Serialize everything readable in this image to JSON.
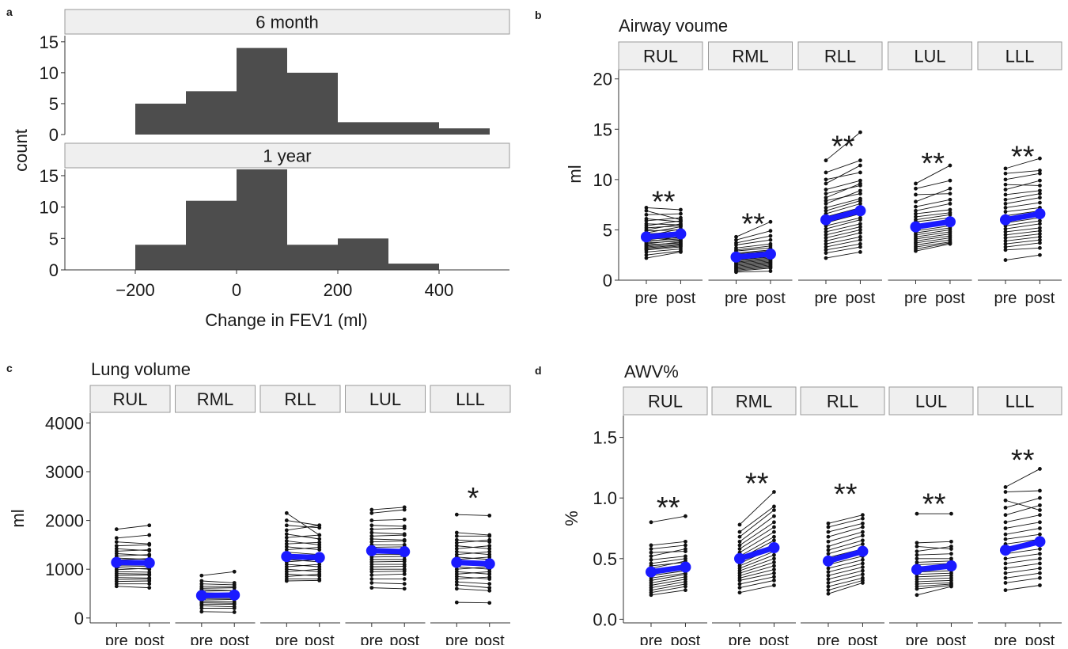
{
  "chart_data": [
    {
      "panel": "a",
      "type": "bar",
      "subtype": "faceted histogram",
      "xlabel": "Change in FEV1 (ml)",
      "ylabel": "count",
      "xticks": [
        -200,
        0,
        200,
        400
      ],
      "yticks": [
        0,
        5,
        10,
        15
      ],
      "ylim": [
        0,
        16
      ],
      "bin_width": 100,
      "facets": [
        {
          "name": "6 month",
          "bins": [
            {
              "start": -200,
              "end": -100,
              "count": 5
            },
            {
              "start": -100,
              "end": 0,
              "count": 7
            },
            {
              "start": 0,
              "end": 100,
              "count": 14
            },
            {
              "start": 100,
              "end": 200,
              "count": 10
            },
            {
              "start": 200,
              "end": 300,
              "count": 2
            },
            {
              "start": 300,
              "end": 400,
              "count": 2
            },
            {
              "start": 400,
              "end": 500,
              "count": 1
            }
          ]
        },
        {
          "name": "1 year",
          "bins": [
            {
              "start": -200,
              "end": -100,
              "count": 4
            },
            {
              "start": -100,
              "end": 0,
              "count": 11
            },
            {
              "start": 0,
              "end": 100,
              "count": 16
            },
            {
              "start": 100,
              "end": 200,
              "count": 4
            },
            {
              "start": 200,
              "end": 300,
              "count": 5
            },
            {
              "start": 300,
              "end": 400,
              "count": 1
            }
          ]
        }
      ],
      "bar_color": "#4d4d4d"
    },
    {
      "panel": "b",
      "type": "line",
      "subtype": "paired pre/post",
      "title": "Airway voume",
      "ylabel": "ml",
      "yticks": [
        "0",
        "5",
        "10",
        "15",
        "20"
      ],
      "ylim": [
        0,
        21
      ],
      "xcategories": [
        "pre",
        "post"
      ],
      "mean_color": "#1a1aff",
      "facets": [
        {
          "name": "RUL",
          "sig": "**",
          "mean": [
            4.3,
            4.6
          ],
          "sig_y": 7.9,
          "pre": [
            7.2,
            6.9,
            6.5,
            6.1,
            5.9,
            5.6,
            5.4,
            5.2,
            5.0,
            4.9,
            4.7,
            4.6,
            4.5,
            4.4,
            4.3,
            4.2,
            4.1,
            4.0,
            3.9,
            3.8,
            3.7,
            3.6,
            3.5,
            3.4,
            3.3,
            3.2,
            3.1,
            3.0,
            2.8,
            2.5,
            2.2
          ],
          "post": [
            7.0,
            6.0,
            6.6,
            5.8,
            6.2,
            5.5,
            5.9,
            5.4,
            5.6,
            5.0,
            5.3,
            4.8,
            4.7,
            5.1,
            4.5,
            4.6,
            4.2,
            4.4,
            4.1,
            4.3,
            3.9,
            4.0,
            3.7,
            3.8,
            3.6,
            3.5,
            3.4,
            3.3,
            3.1,
            2.9,
            2.8
          ]
        },
        {
          "name": "RML",
          "sig": "**",
          "mean": [
            2.3,
            2.6
          ],
          "sig_y": 5.7,
          "pre": [
            4.3,
            4.0,
            3.7,
            3.5,
            3.2,
            3.0,
            2.9,
            2.7,
            2.6,
            2.5,
            2.4,
            2.3,
            2.2,
            2.1,
            2.0,
            1.9,
            1.8,
            1.7,
            1.6,
            1.5,
            1.4,
            1.3,
            1.2,
            1.1,
            1.0,
            0.9,
            0.8
          ],
          "post": [
            5.8,
            4.9,
            4.4,
            4.0,
            3.6,
            3.4,
            3.2,
            3.0,
            2.9,
            2.8,
            2.7,
            2.6,
            2.5,
            2.4,
            2.3,
            2.2,
            2.1,
            2.0,
            1.9,
            1.8,
            1.7,
            1.6,
            1.5,
            1.4,
            1.3,
            1.2,
            0.9
          ]
        },
        {
          "name": "RLL",
          "sig": "**",
          "mean": [
            6.0,
            6.9
          ],
          "sig_y": 13.4,
          "pre": [
            11.9,
            10.7,
            10.0,
            9.6,
            9.0,
            8.6,
            8.2,
            7.9,
            7.6,
            7.2,
            6.9,
            6.6,
            6.3,
            6.0,
            5.7,
            5.4,
            5.1,
            4.8,
            4.5,
            4.2,
            3.9,
            3.6,
            3.3,
            3.0,
            2.7,
            2.2
          ],
          "post": [
            14.7,
            11.9,
            10.7,
            11.4,
            9.9,
            9.4,
            9.6,
            8.6,
            8.9,
            8.1,
            7.9,
            7.6,
            7.2,
            6.9,
            6.6,
            6.2,
            6.0,
            5.6,
            5.3,
            5.0,
            4.7,
            4.3,
            4.0,
            3.6,
            3.3,
            2.8
          ]
        },
        {
          "name": "LUL",
          "sig": "**",
          "mean": [
            5.3,
            5.8
          ],
          "sig_y": 11.7,
          "pre": [
            9.6,
            9.1,
            8.5,
            7.8,
            7.3,
            6.9,
            6.6,
            6.3,
            6.0,
            5.8,
            5.5,
            5.3,
            5.1,
            4.9,
            4.7,
            4.5,
            4.3,
            4.1,
            3.9,
            3.7,
            3.5,
            3.3,
            3.1,
            2.9
          ],
          "post": [
            11.4,
            9.9,
            8.6,
            9.1,
            8.0,
            7.6,
            7.0,
            6.7,
            6.5,
            6.2,
            6.0,
            5.8,
            5.6,
            5.4,
            5.2,
            5.0,
            4.8,
            4.6,
            4.4,
            4.2,
            4.0,
            3.8,
            3.7,
            3.6
          ]
        },
        {
          "name": "LLL",
          "sig": "**",
          "mean": [
            6.0,
            6.6
          ],
          "sig_y": 12.4,
          "pre": [
            11.1,
            10.6,
            10.0,
            9.5,
            9.0,
            8.5,
            8.0,
            7.6,
            7.2,
            6.8,
            6.4,
            6.0,
            5.7,
            5.4,
            5.1,
            4.8,
            4.5,
            4.2,
            3.9,
            3.6,
            3.3,
            3.0,
            2.0
          ],
          "post": [
            12.1,
            10.9,
            10.6,
            9.4,
            9.9,
            8.9,
            8.6,
            8.2,
            7.7,
            7.2,
            6.9,
            6.5,
            6.2,
            5.9,
            5.6,
            5.2,
            4.9,
            4.6,
            4.3,
            4.0,
            3.7,
            3.2,
            2.5
          ]
        }
      ]
    },
    {
      "panel": "c",
      "type": "line",
      "subtype": "paired pre/post",
      "title": "Lung volume",
      "ylabel": "ml",
      "yticks": [
        "0",
        "1000",
        "2000",
        "3000",
        "4000"
      ],
      "ylim": [
        -100,
        4200
      ],
      "xcategories": [
        "pre",
        "post"
      ],
      "mean_color": "#1a1aff",
      "facets": [
        {
          "name": "RUL",
          "sig": "",
          "mean": [
            1140,
            1130
          ],
          "sig_y": null,
          "pre": [
            1820,
            1640,
            1560,
            1480,
            1420,
            1370,
            1320,
            1270,
            1230,
            1190,
            1150,
            1110,
            1070,
            1030,
            990,
            950,
            910,
            870,
            830,
            790,
            750,
            700,
            650
          ],
          "post": [
            1900,
            1700,
            1520,
            1500,
            1380,
            1400,
            1280,
            1300,
            1200,
            1220,
            1120,
            1140,
            1060,
            1000,
            1020,
            940,
            900,
            880,
            820,
            800,
            760,
            700,
            620
          ]
        },
        {
          "name": "RML",
          "sig": "",
          "mean": [
            460,
            470
          ],
          "sig_y": null,
          "pre": [
            870,
            760,
            700,
            650,
            610,
            580,
            550,
            520,
            490,
            460,
            430,
            400,
            370,
            340,
            310,
            280,
            250,
            200,
            130
          ],
          "post": [
            950,
            720,
            680,
            640,
            620,
            560,
            560,
            500,
            500,
            450,
            440,
            400,
            380,
            330,
            300,
            280,
            230,
            200,
            120
          ]
        },
        {
          "name": "RLL",
          "sig": "",
          "mean": [
            1260,
            1240
          ],
          "sig_y": null,
          "pre": [
            2150,
            2000,
            1900,
            1800,
            1720,
            1650,
            1580,
            1520,
            1460,
            1400,
            1350,
            1300,
            1250,
            1200,
            1150,
            1100,
            1050,
            1000,
            950,
            900,
            850,
            800,
            760
          ],
          "post": [
            1700,
            1900,
            1850,
            1900,
            1620,
            1700,
            1500,
            1550,
            1400,
            1450,
            1300,
            1250,
            1280,
            1150,
            1200,
            1050,
            1100,
            950,
            1000,
            860,
            900,
            800,
            770
          ]
        },
        {
          "name": "LUL",
          "sig": "",
          "mean": [
            1380,
            1360
          ],
          "sig_y": null,
          "pre": [
            2220,
            2150,
            2000,
            1900,
            1820,
            1750,
            1680,
            1620,
            1560,
            1500,
            1450,
            1400,
            1350,
            1300,
            1250,
            1200,
            1150,
            1100,
            1050,
            1000,
            950,
            880,
            800,
            720,
            620
          ],
          "post": [
            2270,
            2220,
            2020,
            1880,
            1840,
            1720,
            1700,
            1600,
            1580,
            1500,
            1460,
            1400,
            1360,
            1300,
            1260,
            1200,
            1160,
            1100,
            1060,
            1000,
            960,
            900,
            800,
            700,
            600
          ]
        },
        {
          "name": "LLL",
          "sig": "*",
          "mean": [
            1140,
            1110
          ],
          "sig_y": 2480,
          "pre": [
            2120,
            1750,
            1680,
            1600,
            1540,
            1480,
            1420,
            1360,
            1300,
            1250,
            1200,
            1150,
            1100,
            1050,
            1000,
            950,
            900,
            850,
            800,
            740,
            680,
            600,
            320
          ],
          "post": [
            2100,
            1700,
            1680,
            1560,
            1600,
            1420,
            1480,
            1300,
            1360,
            1200,
            1250,
            1100,
            1150,
            1000,
            1050,
            900,
            950,
            800,
            840,
            700,
            620,
            560,
            310
          ]
        }
      ]
    },
    {
      "panel": "d",
      "type": "line",
      "subtype": "paired pre/post",
      "title": "AWV%",
      "ylabel": "%",
      "yticks": [
        "0.0",
        "0.5",
        "1.0",
        "1.5"
      ],
      "ylim": [
        -0.03,
        1.68
      ],
      "xcategories": [
        "pre",
        "post"
      ],
      "mean_color": "#1a1aff",
      "facets": [
        {
          "name": "RUL",
          "sig": "**",
          "mean": [
            0.39,
            0.43
          ],
          "sig_y": 0.93,
          "pre": [
            0.8,
            0.61,
            0.58,
            0.55,
            0.52,
            0.49,
            0.46,
            0.44,
            0.42,
            0.4,
            0.38,
            0.36,
            0.34,
            0.32,
            0.3,
            0.28,
            0.26,
            0.24,
            0.22,
            0.2
          ],
          "post": [
            0.85,
            0.64,
            0.61,
            0.56,
            0.58,
            0.52,
            0.5,
            0.47,
            0.48,
            0.44,
            0.42,
            0.4,
            0.38,
            0.37,
            0.35,
            0.33,
            0.31,
            0.29,
            0.27,
            0.24
          ]
        },
        {
          "name": "RML",
          "sig": "**",
          "mean": [
            0.5,
            0.59
          ],
          "sig_y": 1.13,
          "pre": [
            0.78,
            0.72,
            0.68,
            0.64,
            0.61,
            0.58,
            0.55,
            0.52,
            0.5,
            0.48,
            0.46,
            0.44,
            0.42,
            0.4,
            0.38,
            0.36,
            0.34,
            0.32,
            0.29,
            0.26,
            0.22
          ],
          "post": [
            1.05,
            0.93,
            0.9,
            0.85,
            0.8,
            0.76,
            0.72,
            0.68,
            0.65,
            0.62,
            0.59,
            0.56,
            0.53,
            0.5,
            0.47,
            0.44,
            0.41,
            0.38,
            0.35,
            0.32,
            0.28
          ]
        },
        {
          "name": "RLL",
          "sig": "**",
          "mean": [
            0.48,
            0.56
          ],
          "sig_y": 1.04,
          "pre": [
            0.79,
            0.76,
            0.72,
            0.68,
            0.64,
            0.6,
            0.57,
            0.54,
            0.51,
            0.48,
            0.45,
            0.42,
            0.39,
            0.36,
            0.33,
            0.3,
            0.27,
            0.24,
            0.21
          ],
          "post": [
            0.86,
            0.83,
            0.79,
            0.76,
            0.72,
            0.69,
            0.65,
            0.62,
            0.58,
            0.55,
            0.52,
            0.49,
            0.46,
            0.43,
            0.4,
            0.37,
            0.34,
            0.32,
            0.3
          ]
        },
        {
          "name": "LUL",
          "sig": "**",
          "mean": [
            0.41,
            0.44
          ],
          "sig_y": 0.96,
          "pre": [
            0.87,
            0.63,
            0.6,
            0.56,
            0.53,
            0.5,
            0.47,
            0.45,
            0.43,
            0.41,
            0.39,
            0.37,
            0.35,
            0.33,
            0.31,
            0.29,
            0.27,
            0.25,
            0.2
          ],
          "post": [
            0.87,
            0.64,
            0.58,
            0.6,
            0.54,
            0.5,
            0.48,
            0.46,
            0.44,
            0.42,
            0.4,
            0.38,
            0.36,
            0.34,
            0.32,
            0.3,
            0.29,
            0.28,
            0.27
          ]
        },
        {
          "name": "LLL",
          "sig": "**",
          "mean": [
            0.57,
            0.64
          ],
          "sig_y": 1.32,
          "pre": [
            1.09,
            1.05,
            0.98,
            0.92,
            0.86,
            0.8,
            0.75,
            0.7,
            0.66,
            0.62,
            0.58,
            0.54,
            0.5,
            0.46,
            0.42,
            0.38,
            0.34,
            0.3,
            0.24
          ],
          "post": [
            1.24,
            1.06,
            0.9,
            1.0,
            0.94,
            0.86,
            0.8,
            0.75,
            0.7,
            0.66,
            0.62,
            0.58,
            0.54,
            0.5,
            0.46,
            0.42,
            0.38,
            0.34,
            0.28
          ]
        }
      ]
    }
  ]
}
